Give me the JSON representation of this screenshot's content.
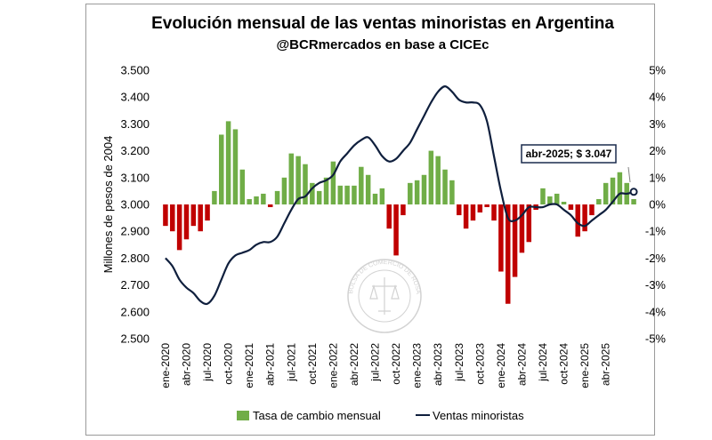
{
  "chart_data": {
    "type": "bar",
    "title": "Evolución mensual de las ventas minoristas en Argentina",
    "subtitle": "@BCRmercados en base a CICEc",
    "ylabel": "Millones de pesos de 2004",
    "ylim": [
      2500,
      3500
    ],
    "y2lim": [
      -5,
      5
    ],
    "y_ticks": [
      "2.500",
      "2.600",
      "2.700",
      "2.800",
      "2.900",
      "3.000",
      "3.100",
      "3.200",
      "3.300",
      "3.400",
      "3.500"
    ],
    "y2_ticks": [
      "-5%",
      "-4%",
      "-3%",
      "-2%",
      "-1%",
      "0%",
      "1%",
      "2%",
      "3%",
      "4%",
      "5%"
    ],
    "x_tick_labels": [
      "ene-2020",
      "abr-2020",
      "jul-2020",
      "oct-2020",
      "ene-2021",
      "abr-2021",
      "jul-2021",
      "oct-2021",
      "ene-2022",
      "abr-2022",
      "jul-2022",
      "oct-2022",
      "ene-2023",
      "abr-2023",
      "jul-2023",
      "oct-2023",
      "ene-2024",
      "abr-2024",
      "jul-2024",
      "oct-2024",
      "ene-2025",
      "abr-2025"
    ],
    "grid": false,
    "legend_position": "bottom",
    "series": [
      {
        "name": "Tasa de cambio mensual",
        "type": "bar",
        "axis": "right",
        "color_positive": "#70ad47",
        "color_negative": "#c00000",
        "values": [
          -0.8,
          -1.0,
          -1.7,
          -1.3,
          -0.8,
          -1.0,
          -0.6,
          0.5,
          2.6,
          3.1,
          2.8,
          1.3,
          0.2,
          0.3,
          0.4,
          -0.1,
          0.5,
          1.0,
          1.9,
          1.8,
          1.5,
          0.8,
          0.5,
          1.0,
          1.6,
          0.7,
          0.7,
          0.7,
          1.4,
          1.1,
          0.4,
          0.6,
          -0.9,
          -1.9,
          -0.4,
          0.8,
          0.9,
          1.1,
          2.0,
          1.8,
          1.3,
          0.9,
          -0.4,
          -0.9,
          -0.6,
          -0.3,
          -0.1,
          -0.6,
          -2.5,
          -3.7,
          -2.7,
          -1.8,
          -1.4,
          -0.2,
          0.6,
          0.3,
          0.4,
          0.1,
          -0.2,
          -1.2,
          -1.0,
          -0.4,
          0.2,
          0.8,
          1.0,
          1.2,
          0.8,
          0.2
        ]
      },
      {
        "name": "Ventas minoristas",
        "type": "line",
        "axis": "left",
        "color": "#0f1f3d",
        "values": [
          2800,
          2770,
          2720,
          2690,
          2670,
          2640,
          2630,
          2660,
          2720,
          2780,
          2810,
          2820,
          2830,
          2850,
          2860,
          2860,
          2880,
          2930,
          2980,
          3020,
          3030,
          3060,
          3080,
          3090,
          3110,
          3160,
          3190,
          3220,
          3240,
          3250,
          3220,
          3180,
          3160,
          3170,
          3200,
          3230,
          3280,
          3330,
          3380,
          3420,
          3440,
          3420,
          3390,
          3380,
          3380,
          3370,
          3310,
          3180,
          3050,
          2950,
          2940,
          2960,
          2990,
          2990,
          2990,
          3000,
          3000,
          2980,
          2960,
          2930,
          2920,
          2940,
          2960,
          2980,
          3010,
          3040,
          3040,
          3047
        ]
      }
    ],
    "annotation": "abr-2025; $ 3.047",
    "watermark": "BOLSA DE COMERCIO DE ROSARIO"
  }
}
